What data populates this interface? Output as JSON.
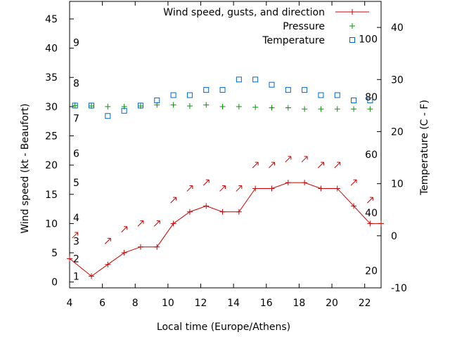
{
  "chart_data": {
    "type": "line",
    "xlabel": "Local time (Europe/Athens)",
    "ylabel": "Wind speed (kt - Beaufort)",
    "y2label": "Temperature (C - F)",
    "xlim": [
      4,
      23
    ],
    "ylim": [
      -1,
      48
    ],
    "y2lim": [
      -10,
      45
    ],
    "grid": false,
    "legend_position": "top-right",
    "x_ticks": [
      4,
      6,
      8,
      10,
      12,
      14,
      16,
      18,
      20,
      22
    ],
    "y_ticks": [
      0,
      5,
      10,
      15,
      20,
      25,
      30,
      35,
      40,
      45
    ],
    "y2_ticks": [
      -10,
      0,
      10,
      20,
      30,
      40
    ],
    "beaufort_labels": [
      {
        "text": "1",
        "y": 1
      },
      {
        "text": "2",
        "y": 4
      },
      {
        "text": "3",
        "y": 7
      },
      {
        "text": "4",
        "y": 11
      },
      {
        "text": "5",
        "y": 17
      },
      {
        "text": "6",
        "y": 22
      },
      {
        "text": "7",
        "y": 28
      },
      {
        "text": "8",
        "y": 34
      },
      {
        "text": "9",
        "y": 41
      }
    ],
    "fahrenheit_labels": [
      {
        "text": "20",
        "celsius": -6.7
      },
      {
        "text": "40",
        "celsius": 4.4
      },
      {
        "text": "60",
        "celsius": 15.6
      },
      {
        "text": "80",
        "celsius": 26.7
      },
      {
        "text": "100",
        "celsius": 37.8
      }
    ],
    "series": [
      {
        "name": "Wind speed, gusts, and direction",
        "color": "#cc0000",
        "axis": "left",
        "marker": "plus-line",
        "x": [
          4,
          5.33,
          6.33,
          7.33,
          8.33,
          9.33,
          10.33,
          11.33,
          12.33,
          13.33,
          14.33,
          15.33,
          16.33,
          17.33,
          18.33,
          19.33,
          20.33,
          21.33,
          22.33,
          23
        ],
        "values": [
          4,
          1,
          3,
          5,
          6,
          6,
          10,
          12,
          13,
          12,
          12,
          16,
          16,
          17,
          17,
          16,
          16,
          13,
          10,
          10
        ]
      },
      {
        "name": "Pressure",
        "color": "#009900",
        "axis": "left",
        "marker": "plus",
        "x": [
          4.33,
          5.33,
          6.33,
          7.33,
          8.33,
          9.33,
          10.33,
          11.33,
          12.33,
          13.33,
          14.33,
          15.33,
          16.33,
          17.33,
          18.33,
          19.33,
          20.33,
          21.33,
          22.33
        ],
        "values": [
          30.2,
          30.1,
          30.0,
          30.0,
          30.1,
          30.3,
          30.3,
          30.1,
          30.3,
          30.0,
          30.0,
          29.9,
          29.8,
          29.8,
          29.6,
          29.6,
          29.6,
          29.6,
          29.6
        ]
      },
      {
        "name": "Temperature",
        "color": "#0066cc",
        "axis": "right",
        "marker": "square",
        "x": [
          4.33,
          5.33,
          6.33,
          7.33,
          8.33,
          9.33,
          10.33,
          11.33,
          12.33,
          13.33,
          14.33,
          15.33,
          16.33,
          17.33,
          18.33,
          19.33,
          20.33,
          21.33,
          22.33
        ],
        "values": [
          25.0,
          25.0,
          23.0,
          24.0,
          25.0,
          26.0,
          27.0,
          27.0,
          28.0,
          28.0,
          30.0,
          30.0,
          29.0,
          28.0,
          28.0,
          27.0,
          27.0,
          26.0,
          26.0
        ]
      }
    ],
    "wind_arrows": {
      "color": "#cc0000",
      "direction_note": "arrows point to the northeast",
      "points": [
        {
          "x": 4.33,
          "y": 8
        },
        {
          "x": 6.33,
          "y": 7
        },
        {
          "x": 7.33,
          "y": 9
        },
        {
          "x": 8.33,
          "y": 10
        },
        {
          "x": 9.33,
          "y": 10
        },
        {
          "x": 10.33,
          "y": 14
        },
        {
          "x": 11.33,
          "y": 16
        },
        {
          "x": 12.33,
          "y": 17
        },
        {
          "x": 13.33,
          "y": 16
        },
        {
          "x": 14.33,
          "y": 16
        },
        {
          "x": 15.33,
          "y": 20
        },
        {
          "x": 16.33,
          "y": 20
        },
        {
          "x": 17.33,
          "y": 21
        },
        {
          "x": 18.33,
          "y": 21
        },
        {
          "x": 19.33,
          "y": 20
        },
        {
          "x": 20.33,
          "y": 20
        },
        {
          "x": 21.33,
          "y": 17
        },
        {
          "x": 22.33,
          "y": 14
        }
      ]
    }
  }
}
